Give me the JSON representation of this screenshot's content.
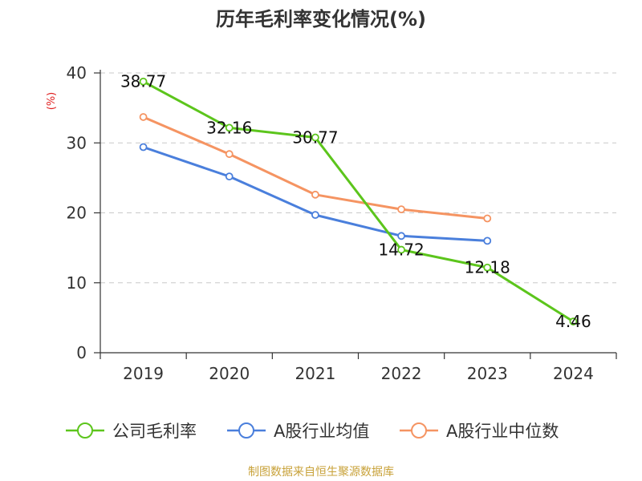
{
  "chart_data": {
    "type": "line",
    "title": "历年毛利率变化情况(%)",
    "ylabel": "(%)",
    "xlabel": "",
    "categories": [
      "2019",
      "2020",
      "2021",
      "2022",
      "2023",
      "2024"
    ],
    "ylim": [
      0,
      40
    ],
    "yticks": [
      0,
      10,
      20,
      30,
      40
    ],
    "grid": true,
    "legend_position": "bottom",
    "series": [
      {
        "name": "公司毛利率",
        "color": "#5cc51c",
        "values": [
          38.77,
          32.16,
          30.77,
          14.72,
          12.18,
          4.46
        ],
        "labels": [
          "38.77",
          "32.16",
          "30.77",
          "14.72",
          "12.18",
          "4.46"
        ]
      },
      {
        "name": "A股行业均值",
        "color": "#4a7fdc",
        "values": [
          29.4,
          25.2,
          19.7,
          16.7,
          16.0,
          null
        ]
      },
      {
        "name": "A股行业中位数",
        "color": "#f59462",
        "values": [
          33.7,
          28.4,
          22.6,
          20.5,
          19.2,
          null
        ]
      }
    ]
  },
  "footer": {
    "source": "制图数据来自恒生聚源数据库"
  }
}
